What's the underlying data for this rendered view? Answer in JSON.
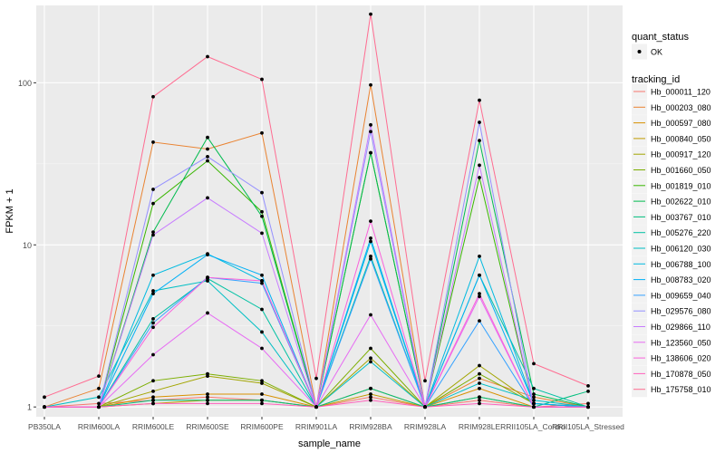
{
  "chart_data": {
    "type": "line",
    "title": "",
    "xlabel": "sample_name",
    "ylabel": "FPKM + 1",
    "y_scale": "log10",
    "ylim": [
      0.87,
      300
    ],
    "yticks": [
      {
        "value": 1,
        "label": "1"
      },
      {
        "value": 10,
        "label": "10"
      },
      {
        "value": 100,
        "label": "100"
      }
    ],
    "categories": [
      "PB350LA",
      "RRIM600LA",
      "RRIM600LE",
      "RRIM600SE",
      "RRIM600PE",
      "RRIM901LA",
      "RRIM928BA",
      "RRIM928LA",
      "RRIM928LE",
      "RRII105LA_Control",
      "RRII105LA_Stressed"
    ],
    "grid": true,
    "background": "#EBEBEB",
    "point_color": "#000000",
    "legend": {
      "placement": "right",
      "shape_title": "quant_status",
      "shape_entries": [
        "OK"
      ],
      "color_title": "tracking_id"
    },
    "series": [
      {
        "name": "Hb_000011_120",
        "color": "#F8766D",
        "values": [
          1.0,
          1.05,
          1.1,
          1.15,
          1.1,
          1.0,
          1.15,
          1.0,
          1.1,
          1.0,
          1.05
        ]
      },
      {
        "name": "Hb_000203_080",
        "color": "#EA8331",
        "values": [
          1.0,
          1.3,
          43,
          39,
          49,
          1.0,
          97,
          1.0,
          1.5,
          1.15,
          1.0
        ]
      },
      {
        "name": "Hb_000597_080",
        "color": "#D89000",
        "values": [
          1.0,
          1.0,
          1.15,
          1.2,
          1.2,
          1.0,
          1.3,
          1.0,
          1.3,
          1.0,
          1.0
        ]
      },
      {
        "name": "Hb_000840_050",
        "color": "#C09B00",
        "values": [
          1.0,
          1.0,
          1.05,
          1.1,
          1.1,
          1.0,
          1.2,
          1.0,
          1.15,
          1.0,
          1.0
        ]
      },
      {
        "name": "Hb_000917_120",
        "color": "#A3A500",
        "values": [
          1.0,
          1.0,
          1.25,
          1.55,
          1.4,
          1.0,
          2.0,
          1.0,
          1.8,
          1.05,
          1.0
        ]
      },
      {
        "name": "Hb_001660_050",
        "color": "#7CAE00",
        "values": [
          1.0,
          1.0,
          1.45,
          1.6,
          1.45,
          1.0,
          2.3,
          1.0,
          1.6,
          1.05,
          1.0
        ]
      },
      {
        "name": "Hb_001819_010",
        "color": "#39B600",
        "values": [
          1.0,
          1.0,
          18,
          33,
          16,
          1.0,
          37,
          1.0,
          26,
          1.0,
          1.0
        ]
      },
      {
        "name": "Hb_002622_010",
        "color": "#00BB4E",
        "values": [
          1.0,
          1.0,
          12,
          46,
          15,
          1.0,
          37,
          1.0,
          44,
          1.2,
          1.0
        ]
      },
      {
        "name": "Hb_003767_010",
        "color": "#00BF7D",
        "values": [
          1.0,
          1.0,
          1.1,
          1.1,
          1.1,
          1.0,
          1.3,
          1.0,
          1.15,
          1.0,
          1.25
        ]
      },
      {
        "name": "Hb_005276_220",
        "color": "#00C1A3",
        "values": [
          1.0,
          1.0,
          3.5,
          6.2,
          4.0,
          1.0,
          8.5,
          1.0,
          6.5,
          1.3,
          1.0
        ]
      },
      {
        "name": "Hb_006120_030",
        "color": "#00BFC4",
        "values": [
          1.0,
          1.15,
          5.2,
          6.0,
          2.9,
          1.0,
          1.9,
          1.0,
          1.4,
          1.1,
          1.0
        ]
      },
      {
        "name": "Hb_006788_100",
        "color": "#00BAE0",
        "values": [
          1.0,
          1.0,
          6.5,
          8.8,
          6.0,
          1.0,
          10.5,
          1.0,
          8.5,
          1.05,
          1.0
        ]
      },
      {
        "name": "Hb_008783_020",
        "color": "#00B0F6",
        "values": [
          1.0,
          1.0,
          5.0,
          8.7,
          6.5,
          1.0,
          11.0,
          1.0,
          6.5,
          1.05,
          1.0
        ]
      },
      {
        "name": "Hb_009659_040",
        "color": "#35A2FF",
        "values": [
          1.0,
          1.0,
          3.3,
          6.3,
          5.8,
          1.0,
          8.2,
          1.0,
          3.4,
          1.0,
          1.0
        ]
      },
      {
        "name": "Hb_029576_080",
        "color": "#9590FF",
        "values": [
          1.0,
          1.0,
          22,
          35,
          21,
          1.0,
          50,
          1.0,
          57,
          1.0,
          1.0
        ]
      },
      {
        "name": "Hb_029866_110",
        "color": "#C77CFF",
        "values": [
          1.0,
          1.0,
          11.5,
          19.5,
          11.8,
          1.0,
          55,
          1.0,
          31,
          1.0,
          1.0
        ]
      },
      {
        "name": "Hb_123560_050",
        "color": "#E76BF3",
        "values": [
          1.0,
          1.0,
          2.1,
          3.8,
          2.3,
          1.0,
          3.7,
          1.0,
          4.8,
          1.0,
          1.0
        ]
      },
      {
        "name": "Hb_138606_020",
        "color": "#FA62DB",
        "values": [
          1.0,
          1.0,
          3.1,
          6.3,
          6.0,
          1.0,
          14,
          1.0,
          5.0,
          1.0,
          1.0
        ]
      },
      {
        "name": "Hb_170878_050",
        "color": "#FF62BC",
        "values": [
          1.0,
          1.0,
          1.05,
          1.05,
          1.05,
          1.0,
          1.1,
          1.0,
          1.05,
          1.0,
          1.0
        ]
      },
      {
        "name": "Hb_175758_010",
        "color": "#FF6C91",
        "values": [
          1.15,
          1.55,
          82,
          145,
          105,
          1.5,
          265,
          1.45,
          78,
          1.85,
          1.35
        ]
      }
    ]
  }
}
